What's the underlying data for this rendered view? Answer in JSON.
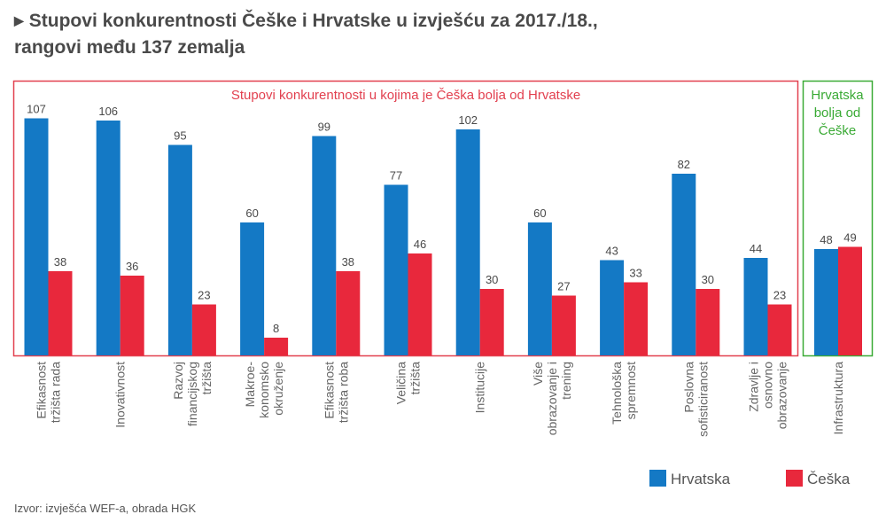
{
  "title_line1": "Stupovi konkurentnosti Češke i Hrvatske u izvješću za 2017./18.,",
  "title_line2": "rangovi među 137 zemalja",
  "source": "Izvor: izvješća WEF-a, obrada HGK",
  "colors": {
    "hrvatska": "#1479c5",
    "ceska": "#e8283c",
    "green": "#3aaa35",
    "red_frame": "#e2404f",
    "text": "#4a4a4a"
  },
  "chart_data": {
    "type": "bar",
    "groups": [
      {
        "label": "Stupovi konkurentnosti u kojima je Češka bolja od Hrvatske",
        "color": "red",
        "category_count": 11
      },
      {
        "label_lines": [
          "Hrvatska",
          "bolja od",
          "Češke"
        ],
        "color": "green",
        "category_count": 1
      }
    ],
    "categories": [
      [
        "Efikasnost",
        "tržišta rada"
      ],
      [
        "Inovativnost"
      ],
      [
        "Razvoj",
        "financijskog",
        "tržišta"
      ],
      [
        "Makroe-",
        "konomsko",
        "okruženje"
      ],
      [
        "Efikasnost",
        "tržišta roba"
      ],
      [
        "Veličina",
        "tržišta"
      ],
      [
        "Institucije"
      ],
      [
        "Više",
        "obrazovanje i",
        "trening"
      ],
      [
        "Tehnološka",
        "spremnost"
      ],
      [
        "Poslovna",
        "sofisticiranost"
      ],
      [
        "Zdravlje i",
        "osnovno",
        "obrazovanje"
      ],
      [
        "Infrastruktura"
      ]
    ],
    "series": [
      {
        "name": "Hrvatska",
        "values": [
          107,
          106,
          95,
          60,
          99,
          77,
          102,
          60,
          43,
          82,
          44,
          48
        ]
      },
      {
        "name": "Češka",
        "values": [
          38,
          36,
          23,
          8,
          38,
          46,
          30,
          27,
          33,
          30,
          23,
          49
        ]
      }
    ],
    "ylim": [
      0,
      115
    ],
    "legend_position": "bottom-right",
    "grid": false
  }
}
